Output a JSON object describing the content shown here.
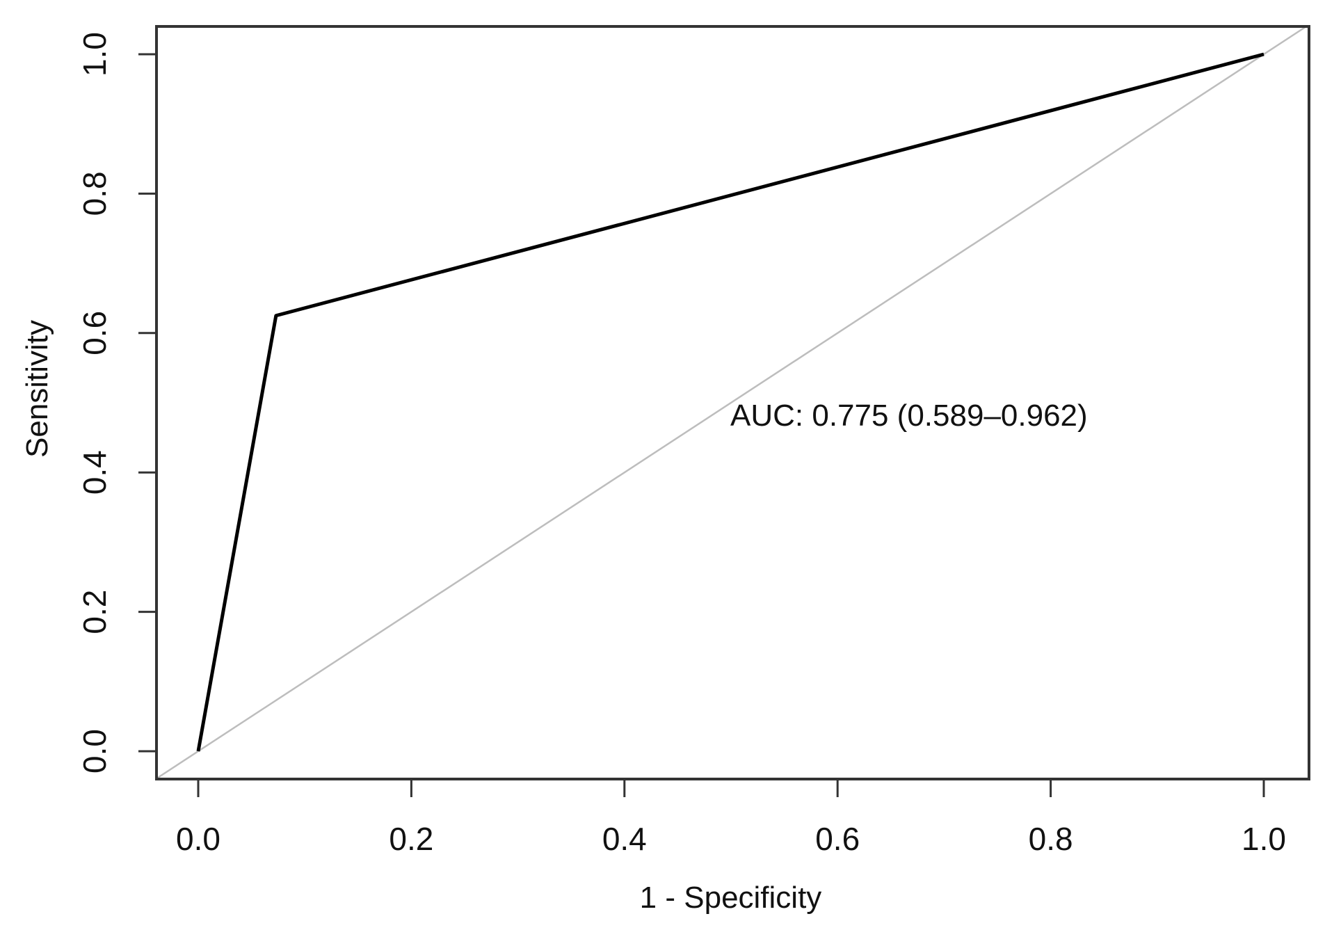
{
  "chart_data": {
    "type": "line",
    "title": "",
    "xlabel": "1 - Specificity",
    "ylabel": "Sensitivity",
    "xlim": [
      0,
      1
    ],
    "ylim": [
      0,
      1
    ],
    "x_ticks": [
      "0.0",
      "0.2",
      "0.4",
      "0.6",
      "0.8",
      "1.0"
    ],
    "y_ticks": [
      "0.0",
      "0.2",
      "0.4",
      "0.6",
      "0.8",
      "1.0"
    ],
    "grid": false,
    "series": [
      {
        "x": [
          0.0,
          0.073,
          1.0
        ],
        "y": [
          0.0,
          0.625,
          1.0
        ],
        "color": "#000000"
      }
    ],
    "reference_line": {
      "x": [
        0,
        1
      ],
      "y": [
        0,
        1
      ],
      "color": "#bdbdbd"
    },
    "annotations": [
      {
        "text": "AUC: 0.775 (0.589–0.962)",
        "x": 0.5,
        "y": 0.47
      }
    ]
  }
}
